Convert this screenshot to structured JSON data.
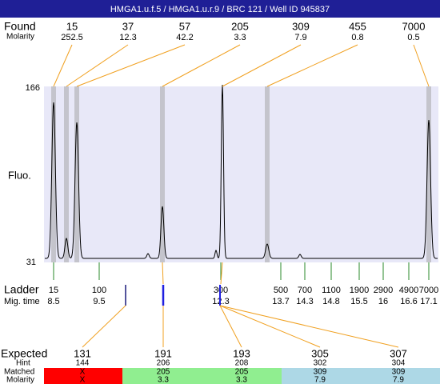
{
  "header": {
    "title": "HMGA1.u.f.5 / HMGA1.u.r.9 / BRC 121 / Well ID 945837"
  },
  "found": {
    "label": "Found",
    "molarity_label": "Molarity",
    "sizes": [
      "15",
      "37",
      "57",
      "205",
      "309",
      "455",
      "7000"
    ],
    "molarities": [
      "252.5",
      "12.3",
      "42.2",
      "3.3",
      "7.9",
      "0.8",
      "0.5"
    ]
  },
  "plot": {
    "y_max": "166",
    "y_min": "31",
    "y_label": "Fluo."
  },
  "ladder": {
    "label": "Ladder",
    "time_label": "Mig. time",
    "sizes": [
      "15",
      "100",
      "300",
      "500",
      "700",
      "1100",
      "1900",
      "2900",
      "4900",
      "7000"
    ],
    "times": [
      "8.5",
      "9.5",
      "12.3",
      "13.7",
      "14.3",
      "14.8",
      "15.5",
      "16",
      "16.6",
      "17.1"
    ]
  },
  "expected": {
    "label": "Expected",
    "hint_label": "Hint",
    "matched_label": "Matched",
    "molarity_label": "Molarity",
    "sizes": [
      "131",
      "191",
      "193",
      "305",
      "307"
    ],
    "hints": [
      "144",
      "206",
      "208",
      "302",
      "304"
    ],
    "matched": [
      "X",
      "205",
      "205",
      "309",
      "309"
    ],
    "molarities": [
      "X",
      "3.3",
      "3.3",
      "7.9",
      "7.9"
    ]
  }
}
